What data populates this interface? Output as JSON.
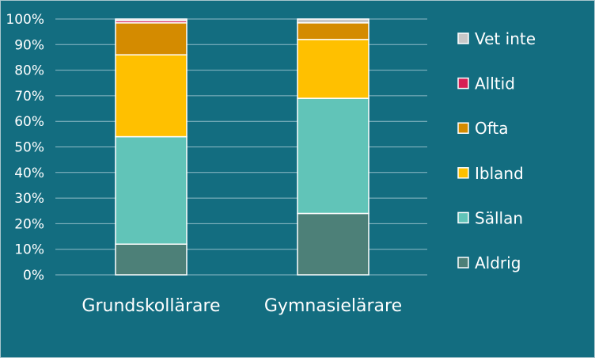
{
  "chart_data": {
    "type": "bar",
    "stacked": true,
    "percent": true,
    "categories": [
      "Grundskollärare",
      "Gymnasielärare"
    ],
    "series": [
      {
        "name": "Aldrig",
        "color": "#4d8078",
        "values": [
          12,
          24
        ]
      },
      {
        "name": "Sällan",
        "color": "#61c4b8",
        "values": [
          42,
          45
        ]
      },
      {
        "name": "Ibland",
        "color": "#ffc000",
        "values": [
          32,
          23
        ]
      },
      {
        "name": "Ofta",
        "color": "#d48b00",
        "values": [
          12.5,
          6.5
        ]
      },
      {
        "name": "Alltid",
        "color": "#d61f55",
        "values": [
          0.8,
          0
        ]
      },
      {
        "name": "Vet inte",
        "color": "#c8c8c8",
        "values": [
          0.7,
          1.5
        ]
      }
    ],
    "ylim": [
      0,
      100
    ],
    "yticks": [
      "0%",
      "10%",
      "20%",
      "30%",
      "40%",
      "50%",
      "60%",
      "70%",
      "80%",
      "90%",
      "100%"
    ],
    "title": "",
    "xlabel": "",
    "ylabel": "",
    "grid": true,
    "legend": "right"
  }
}
